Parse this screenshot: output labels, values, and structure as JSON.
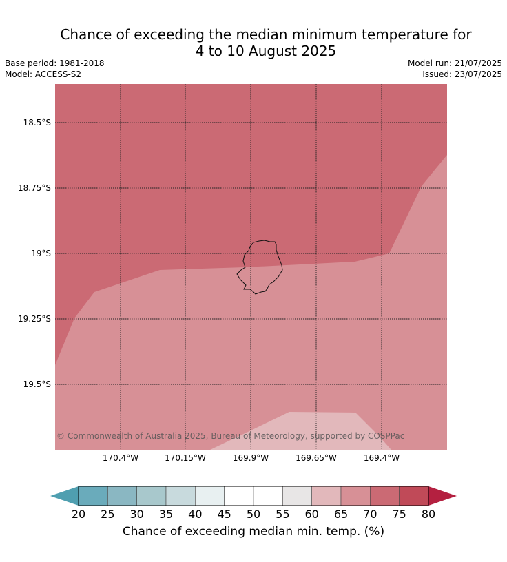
{
  "header": {
    "title_line1": "Chance of exceeding the median minimum temperature for",
    "title_line2": "4 to 10 August 2025",
    "base_period": "Base period: 1981-2018",
    "model": "Model: ACCESS-S2",
    "model_run": "Model run: 21/07/2025",
    "issued": "Issued: 23/07/2025"
  },
  "map": {
    "lat_ticks": [
      "18.5°S",
      "18.75°S",
      "19°S",
      "19.25°S",
      "19.5°S"
    ],
    "lon_ticks": [
      "170.4°W",
      "170.15°W",
      "169.9°W",
      "169.65°W",
      "169.4°W"
    ],
    "copyright": "© Commonwealth of Australia 2025, Bureau of Meteorology, supported by COSPPac",
    "region_colors": {
      "p70_75": "#cb6a74",
      "p65_70": "#d79096",
      "p60_65": "#e2b8bb",
      "coast": "#111111",
      "grid": "#222222"
    }
  },
  "colorbar": {
    "ticks": [
      "20",
      "25",
      "30",
      "35",
      "40",
      "45",
      "50",
      "55",
      "60",
      "65",
      "70",
      "75",
      "80"
    ],
    "colors": [
      "#6aabbb",
      "#8ab7c2",
      "#a8c8cc",
      "#c8dadd",
      "#e8f0f1",
      "#ffffff",
      "#ffffff",
      "#e8e6e6",
      "#e2b8bb",
      "#d79096",
      "#cb6a74",
      "#c04a58"
    ],
    "under_color": "#4f9fb0",
    "over_color": "#b42040",
    "label": "Chance of exceeding median min. temp. (%)"
  }
}
